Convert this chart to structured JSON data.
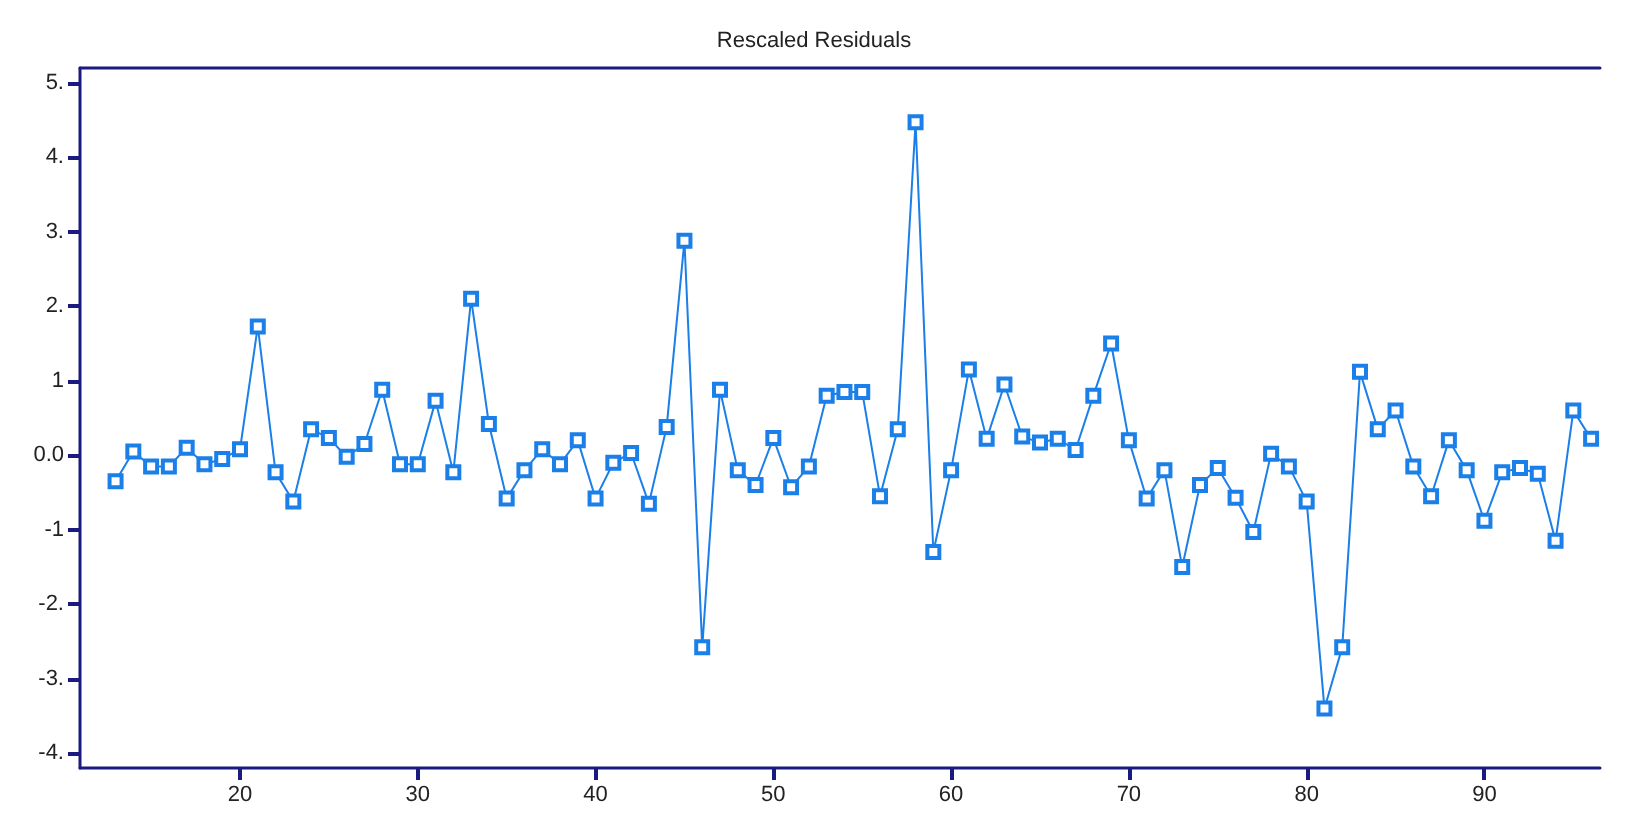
{
  "chart_data": {
    "type": "line",
    "title": "Rescaled Residuals",
    "x": [
      13,
      14,
      15,
      16,
      17,
      18,
      19,
      20,
      21,
      22,
      23,
      24,
      25,
      26,
      27,
      28,
      29,
      30,
      31,
      32,
      33,
      34,
      35,
      36,
      37,
      38,
      39,
      40,
      41,
      42,
      43,
      44,
      45,
      46,
      47,
      48,
      49,
      50,
      51,
      52,
      53,
      54,
      55,
      56,
      57,
      58,
      59,
      60,
      61,
      62,
      63,
      64,
      65,
      66,
      67,
      68,
      69,
      70,
      71,
      72,
      73,
      74,
      75,
      76,
      77,
      78,
      79,
      80,
      81,
      82,
      83,
      84,
      85,
      86,
      87,
      88,
      89,
      90,
      91,
      92,
      93,
      94,
      95,
      96
    ],
    "series": [
      {
        "color": "#1a7fe8",
        "values": [
          -0.35,
          0.05,
          -0.15,
          -0.15,
          0.1,
          -0.12,
          -0.05,
          0.08,
          1.73,
          -0.23,
          -0.62,
          0.35,
          0.23,
          -0.02,
          0.15,
          0.88,
          -0.12,
          -0.12,
          0.73,
          -0.23,
          2.1,
          0.42,
          -0.58,
          -0.2,
          0.08,
          -0.12,
          0.2,
          -0.58,
          -0.1,
          0.03,
          -0.65,
          0.38,
          2.88,
          -2.58,
          0.88,
          -0.2,
          -0.4,
          0.23,
          -0.43,
          -0.15,
          0.8,
          0.85,
          0.85,
          -0.55,
          0.35,
          4.47,
          -1.3,
          -0.2,
          1.15,
          0.22,
          0.95,
          0.25,
          0.17,
          0.22,
          0.07,
          0.8,
          1.5,
          0.2,
          -0.58,
          -0.2,
          -1.5,
          -0.4,
          -0.17,
          -0.57,
          -1.03,
          0.02,
          -0.15,
          -0.62,
          -3.4,
          -2.58,
          1.12,
          0.35,
          0.6,
          -0.15,
          -0.55,
          0.2,
          -0.2,
          -0.88,
          -0.23,
          -0.17,
          -0.25,
          -1.15,
          0.6,
          0.22
        ]
      }
    ],
    "xlim": [
      11,
      96.5
    ],
    "xticks": [
      20,
      30,
      40,
      50,
      60,
      70,
      80,
      90
    ],
    "ylim": [
      -4.2,
      5.2
    ],
    "yticks": [
      {
        "value": -4,
        "label": "-4."
      },
      {
        "value": -3,
        "label": "-3."
      },
      {
        "value": -2,
        "label": "-2."
      },
      {
        "value": -1,
        "label": "-1"
      },
      {
        "value": 0,
        "label": "0.0"
      },
      {
        "value": 1,
        "label": "1"
      },
      {
        "value": 2,
        "label": "2."
      },
      {
        "value": 3,
        "label": "3."
      },
      {
        "value": 4,
        "label": "4."
      },
      {
        "value": 5,
        "label": "5."
      }
    ],
    "grid": false,
    "marker": "square",
    "line_style": "solid"
  }
}
